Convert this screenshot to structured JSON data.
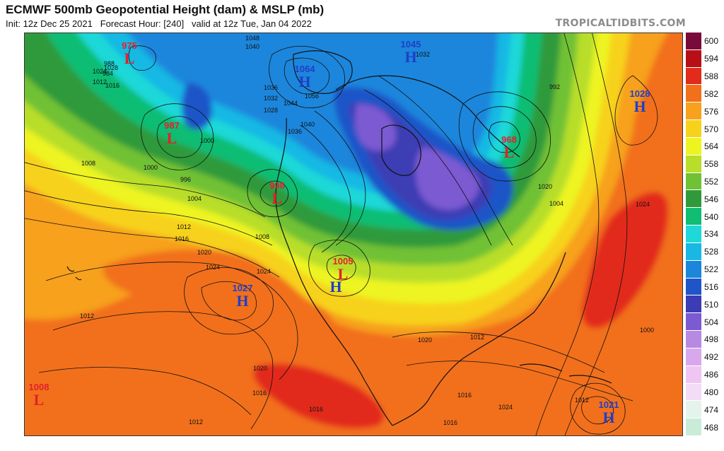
{
  "header": {
    "title": "ECMWF 500mb Geopotential Height (dam) & MSLP (mb)",
    "subtitle": "Init: 12z Dec 25 2021   Forecast Hour: [240]   valid at 12z Tue, Jan 04 2022",
    "brand": "TROPICALTIDBITS.COM"
  },
  "colorbar": {
    "levels": [
      "600",
      "594",
      "588",
      "582",
      "576",
      "570",
      "564",
      "558",
      "552",
      "546",
      "540",
      "534",
      "528",
      "522",
      "516",
      "510",
      "504",
      "498",
      "492",
      "486",
      "480",
      "474",
      "468"
    ],
    "colors": [
      "#7a0a3a",
      "#b80f16",
      "#e22b1a",
      "#f2701a",
      "#f7a11c",
      "#f7d21a",
      "#eef420",
      "#b8de2a",
      "#71c134",
      "#2e9a3a",
      "#11bd73",
      "#1fd8d8",
      "#19b8e4",
      "#1a86dc",
      "#1f55c8",
      "#3c3cb4",
      "#7c5ad2",
      "#b78ae2",
      "#d9a8ec",
      "#efc6f2",
      "#f3dcf5",
      "#e4f4ec",
      "#c9ecd8"
    ]
  },
  "systems": [
    {
      "type": "L",
      "value": "975",
      "color": "#e3202b"
    },
    {
      "type": "L",
      "value": "987",
      "color": "#e3202b"
    },
    {
      "type": "L",
      "value": "998",
      "color": "#e3202b"
    },
    {
      "type": "L",
      "value": "1005",
      "color": "#e3202b"
    },
    {
      "type": "L",
      "value": "968",
      "color": "#e3202b"
    },
    {
      "type": "L",
      "value": "1008",
      "color": "#e3202b"
    },
    {
      "type": "H",
      "value": "1064",
      "color": "#1f3fc8"
    },
    {
      "type": "H",
      "value": "1045",
      "color": "#1f3fc8"
    },
    {
      "type": "H",
      "value": "1028",
      "color": "#1f3fc8"
    },
    {
      "type": "H",
      "value": "1027",
      "color": "#1f3fc8"
    },
    {
      "type": "H",
      "value": "1021",
      "color": "#1f3fc8"
    },
    {
      "type": "H",
      "value": "",
      "color": "#1f3fc8"
    }
  ],
  "isobar_labels": [
    "1008",
    "1000",
    "1004",
    "1012",
    "1016",
    "1020",
    "1024",
    "1012",
    "1020",
    "1016",
    "1012",
    "1016",
    "1024",
    "1008",
    "1012",
    "1016",
    "1024",
    "1028",
    "1040",
    "1036",
    "1032",
    "1028",
    "1044",
    "1048",
    "1056",
    "1040",
    "1036",
    "1000",
    "996",
    "992",
    "984",
    "988",
    "1032",
    "1024",
    "1020",
    "1004",
    "1000",
    "1016",
    "1012",
    "1020",
    "1024",
    "1016",
    "1012"
  ]
}
